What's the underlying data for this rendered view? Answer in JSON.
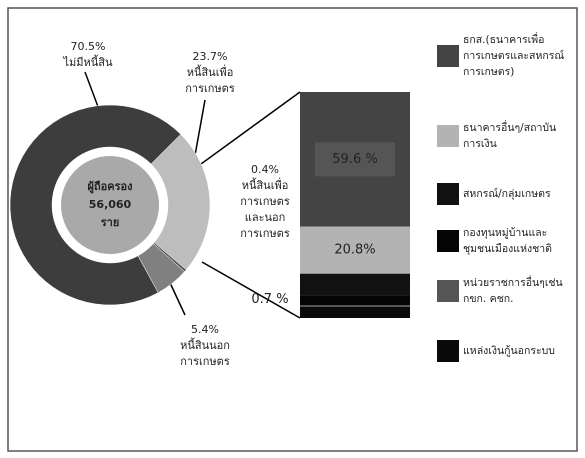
{
  "chart_data": [
    {
      "type": "donut",
      "center_label": [
        "ผู้ถือครอง",
        "56,060",
        "ราย"
      ],
      "categories": [
        "หนี้สินเพื่อ\nการเกษตร",
        "หนี้สินเพื่อ\nการเกษตร\nและนอก\nการเกษตร",
        "หนี้สินนอก\nการเกษตร",
        "ไม่มีหนี้สิน"
      ],
      "values": [
        23.7,
        0.4,
        5.4,
        70.5
      ],
      "value_labels": [
        "23.7%",
        "0.4%",
        "5.4%",
        "70.5%"
      ],
      "colors": [
        "#bdbdbd",
        "#555555",
        "#808080",
        "#3d3d3d"
      ]
    },
    {
      "type": "stacked-bar",
      "series": [
        {
          "name": "ธกส.(ธนาคารเพื่อ\nการเกษตรและสหกรณ์\nการเกษตร)",
          "color": "#444444",
          "values": [
            59.6
          ],
          "value_labels": [
            "59.6 %"
          ]
        },
        {
          "name": "ธนาคารอื่นๆ/สถาบัน\nการเงิน",
          "color": "#b3b3b3",
          "values": [
            20.8
          ],
          "value_labels": [
            "20.8%"
          ]
        },
        {
          "name": "สหกรณ์/กลุ่มเกษตร",
          "color": "#111111",
          "values": [
            9.6
          ]
        },
        {
          "name": "กองทุนหมู่บ้านและ\nชุมชนเมืองแห่งชาติ",
          "color": "#050505",
          "values": [
            4.4
          ]
        },
        {
          "name": "หน่วยราชการอื่นๆเช่น\nกขก. คชก.",
          "color": "#555555",
          "values": [
            0.7
          ],
          "value_labels": [
            "0.7 %"
          ]
        },
        {
          "name": "แหล่งเงินกู้นอกระบบ",
          "color": "#0a0a0a",
          "values": [
            4.9
          ]
        }
      ],
      "ylim": [
        0,
        100
      ]
    }
  ]
}
